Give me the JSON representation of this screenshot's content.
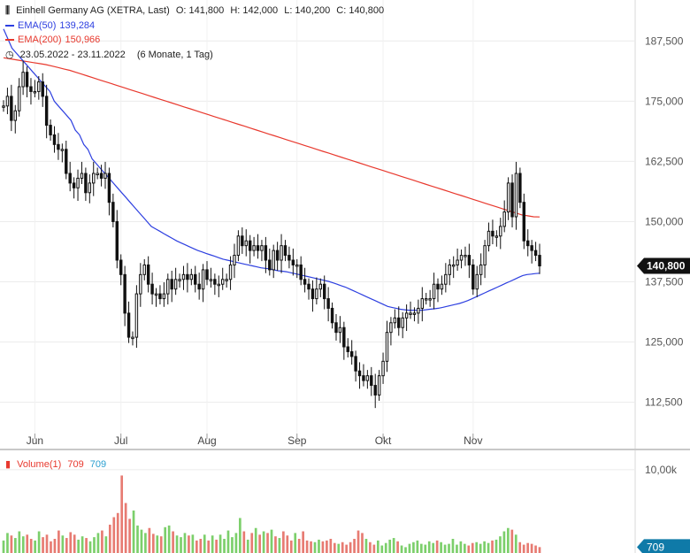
{
  "header": {
    "instrument": "Einhell Germany AG (XETRA, Last)",
    "open": "O: 141,800",
    "high": "H: 142,000",
    "low": "L: 140,200",
    "close": "C: 140,800",
    "ema50_label": "EMA(50)",
    "ema50_value": "139,284",
    "ema200_label": "EMA(200)",
    "ema200_value": "150,966",
    "range": "23.05.2022 - 23.11.2022",
    "range_detail": "(6 Monate, 1 Tag)"
  },
  "volume_header": {
    "label": "Volume(1)",
    "value_red": "709",
    "value_blue": "709"
  },
  "colors": {
    "ema50": "#2d3fe0",
    "ema200": "#e8392e",
    "candle": "#111111",
    "vol_up": "#7ccf6b",
    "vol_down": "#e77b72",
    "last_tag": "#111111",
    "vol_tag": "#0f7aa8"
  },
  "chart_data": [
    {
      "type": "candlestick",
      "title": "Einhell Germany AG (XETRA, Last)",
      "x_ticks": [
        "Jun",
        "Jul",
        "Aug",
        "Sep",
        "Okt",
        "Nov"
      ],
      "y_ticks": [
        "187,500",
        "175,000",
        "162,500",
        "150,000",
        "137,500",
        "125,000",
        "112,500"
      ],
      "ylim": [
        106,
        196
      ],
      "last_price_label": "140,800",
      "last_price": 140.8,
      "grid": true,
      "close": [
        174,
        176,
        171,
        173,
        178,
        181,
        178,
        177,
        177,
        179,
        176,
        170,
        168,
        166,
        165,
        165,
        160,
        158,
        157,
        159,
        160,
        156,
        158,
        160,
        160,
        159,
        160,
        154,
        150,
        142,
        139,
        131,
        126,
        126,
        135,
        139,
        141,
        137,
        135,
        135,
        134,
        135,
        138,
        136,
        138,
        138,
        139,
        138,
        139,
        137,
        136,
        140,
        138,
        138,
        137,
        137,
        138,
        138,
        141,
        143,
        147,
        145,
        146,
        144,
        145,
        144,
        145,
        142,
        140,
        144,
        142,
        145,
        143,
        142,
        141,
        141,
        138,
        137,
        136,
        134,
        136,
        137,
        134,
        132,
        129,
        127,
        128,
        124,
        123,
        122,
        119,
        118,
        117,
        118,
        116,
        114,
        118,
        121,
        127,
        129,
        130,
        128,
        130,
        131,
        131,
        131,
        132,
        134,
        134,
        134,
        137,
        136,
        137,
        139,
        141,
        141,
        142,
        143,
        143,
        141,
        136,
        139,
        141,
        145,
        148,
        147,
        147,
        149,
        152,
        158,
        151,
        160,
        154,
        146,
        145,
        144,
        143,
        140.8
      ],
      "ema50": [
        190,
        188,
        186,
        185,
        184,
        183,
        182,
        181,
        180,
        179,
        178,
        177,
        175,
        174,
        173,
        172,
        171,
        169,
        168,
        166,
        165,
        163,
        162,
        161,
        160,
        159,
        158,
        157,
        156,
        155,
        154,
        153,
        152,
        151,
        150,
        149,
        148.5,
        148,
        147.5,
        147,
        146.5,
        146,
        145.6,
        145.2,
        144.8,
        144.4,
        144,
        143.7,
        143.4,
        143.1,
        142.8,
        142.5,
        142.2,
        142,
        141.8,
        141.6,
        141.4,
        141.2,
        141,
        140.8,
        140.6,
        140.4,
        140.3,
        140.2,
        140,
        139.8,
        139.7,
        139.6,
        139.4,
        139.2,
        139,
        138.8,
        138.6,
        138.4,
        138.2,
        138,
        137.8,
        137.6,
        137.3,
        137,
        136.7,
        136.4,
        136,
        135.6,
        135.2,
        134.8,
        134.4,
        134,
        133.6,
        133.2,
        132.8,
        132.4,
        132.2,
        132,
        131.8,
        131.7,
        131.6,
        131.6,
        131.6,
        131.6,
        131.7,
        131.8,
        131.9,
        132,
        132.2,
        132.4,
        132.6,
        132.8,
        133,
        133.3,
        133.6,
        134,
        134.4,
        134.8,
        135.2,
        135.6,
        136,
        136.4,
        136.8,
        137.2,
        137.6,
        138,
        138.4,
        138.8,
        139,
        139.1,
        139.2,
        139.284
      ],
      "ema200": [
        184,
        183.8,
        183.6,
        183.4,
        183.2,
        183,
        182.8,
        182.6,
        182.3,
        182,
        181.7,
        181.4,
        181,
        180.6,
        180.2,
        179.8,
        179.4,
        179,
        178.6,
        178.2,
        177.8,
        177.4,
        177,
        176.6,
        176.2,
        175.8,
        175.4,
        175,
        174.6,
        174.2,
        173.8,
        173.4,
        173,
        172.6,
        172.2,
        171.8,
        171.4,
        171,
        170.6,
        170.2,
        169.8,
        169.4,
        169,
        168.6,
        168.2,
        167.8,
        167.4,
        167,
        166.6,
        166.2,
        165.8,
        165.4,
        165,
        164.6,
        164.2,
        163.8,
        163.4,
        163,
        162.6,
        162.2,
        161.8,
        161.4,
        161,
        160.6,
        160.2,
        159.8,
        159.4,
        159,
        158.6,
        158.2,
        157.8,
        157.4,
        157,
        156.6,
        156.2,
        155.8,
        155.4,
        155,
        154.6,
        154.2,
        153.8,
        153.4,
        153,
        152.6,
        152.2,
        151.8,
        151.4,
        151.2,
        151,
        150.966
      ]
    },
    {
      "type": "bar",
      "title": "Volume(1)",
      "y_ticks": [
        "10,00k"
      ],
      "last_volume_label": "709",
      "last_volume": 709,
      "values": [
        1500,
        2400,
        2100,
        1800,
        2600,
        2000,
        2200,
        1700,
        1500,
        2600,
        1900,
        2200,
        1400,
        1700,
        2700,
        2100,
        1800,
        2500,
        2200,
        1600,
        2000,
        1800,
        1400,
        1900,
        2400,
        2700,
        2000,
        3400,
        4300,
        4800,
        9300,
        6000,
        4100,
        5100,
        3300,
        2800,
        2400,
        3000,
        2300,
        2100,
        2000,
        3100,
        3300,
        2600,
        2100,
        1900,
        2400,
        2100,
        2200,
        1500,
        1700,
        2200,
        1500,
        2100,
        1600,
        2200,
        1700,
        2700,
        1900,
        2400,
        4200,
        2600,
        1600,
        2400,
        3000,
        2200,
        2600,
        2400,
        2800,
        2000,
        1800,
        2600,
        2100,
        1500,
        2400,
        1700,
        2600,
        1500,
        1400,
        1300,
        1600,
        1400,
        1500,
        1700,
        1200,
        1100,
        1300,
        1000,
        1300,
        1700,
        2700,
        2400,
        1700,
        1300,
        1000,
        1500,
        900,
        1200,
        1600,
        1800,
        1400,
        900,
        700,
        1100,
        1300,
        1500,
        1100,
        1000,
        1400,
        1200,
        1500,
        1300,
        1000,
        1100,
        1700,
        1000,
        1400,
        1100,
        900,
        1200,
        1300,
        1100,
        1400,
        1200,
        1500,
        1600,
        2000,
        2600,
        3000,
        2800,
        2200,
        1300,
        1000,
        1200,
        1100,
        900,
        709
      ]
    }
  ]
}
